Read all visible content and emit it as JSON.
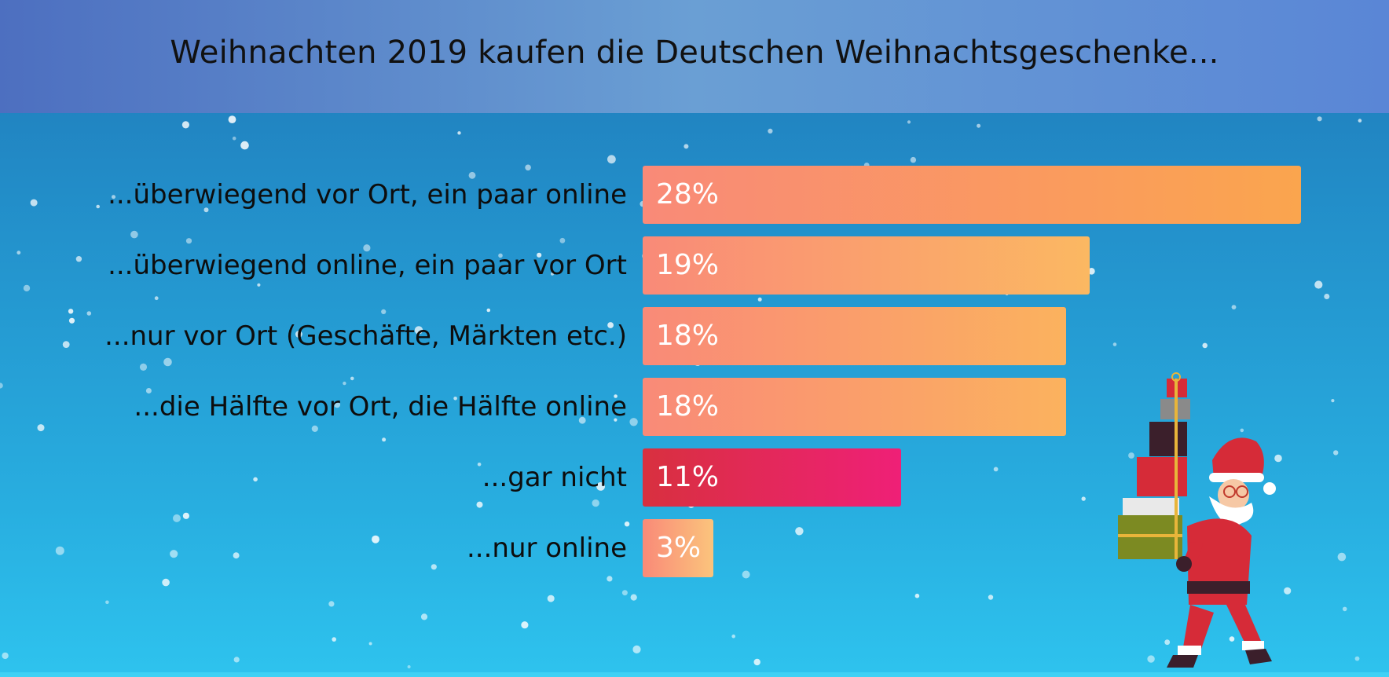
{
  "header": {
    "title": "Weihnachten 2019 kaufen die Deutschen Weihnachtsgeschenke..."
  },
  "chart_data": {
    "type": "bar",
    "orientation": "horizontal",
    "title": "Weihnachten 2019 kaufen die Deutschen Weihnachtsgeschenke...",
    "categories": [
      "...überwiegend vor Ort, ein paar online",
      "...überwiegend online, ein paar vor Ort",
      "...nur vor Ort (Geschäfte, Märkten etc.)",
      "...die Hälfte vor Ort, die Hälfte online",
      "...gar nicht",
      "...nur online"
    ],
    "values": [
      28,
      19,
      18,
      18,
      11,
      3
    ],
    "value_labels": [
      "28%",
      "19%",
      "18%",
      "18%",
      "11%",
      "3%"
    ],
    "unit": "%",
    "xlim": [
      0,
      28
    ],
    "grid": false,
    "legend": "none",
    "bar_colors": [
      [
        "#f98a78",
        "#faa54e"
      ],
      [
        "#f98a78",
        "#fbb862"
      ],
      [
        "#f98a78",
        "#fbb25e"
      ],
      [
        "#f98a78",
        "#fbb25e"
      ],
      [
        "#d8303f",
        "#ef2077"
      ],
      [
        "#f98a78",
        "#fbc47c"
      ]
    ]
  }
}
